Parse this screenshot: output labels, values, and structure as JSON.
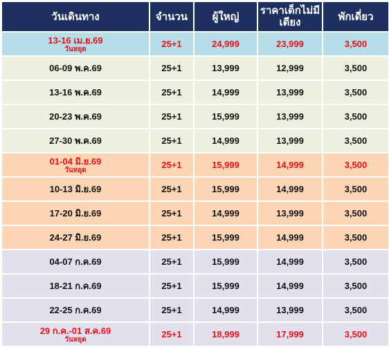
{
  "headers": [
    "วันเดินทาง",
    "จำนวน",
    "ผู้ใหญ่",
    "ราคาเด็กไม่มีเตียง",
    "พักเดี่ยว"
  ],
  "rows": [
    {
      "date": "13-16 เม.ย.69",
      "note": "วันหยุด",
      "pax": "25+1",
      "adult": "24,999",
      "child": "23,999",
      "single": "3,500",
      "group": "blue",
      "holiday": true
    },
    {
      "date": "06-09 พ.ค.69",
      "note": "",
      "pax": "25+1",
      "adult": "13,999",
      "child": "12,999",
      "single": "3,500",
      "group": "green",
      "holiday": false
    },
    {
      "date": "13-16 พ.ค.69",
      "note": "",
      "pax": "25+1",
      "adult": "14,999",
      "child": "13,999",
      "single": "3,500",
      "group": "green",
      "holiday": false
    },
    {
      "date": "20-23 พ.ค.69",
      "note": "",
      "pax": "25+1",
      "adult": "15,999",
      "child": "13,999",
      "single": "3,500",
      "group": "green",
      "holiday": false
    },
    {
      "date": "27-30 พ.ค.69",
      "note": "",
      "pax": "25+1",
      "adult": "14,999",
      "child": "13,999",
      "single": "3,500",
      "group": "green",
      "holiday": false
    },
    {
      "date": "01-04 มิ.ย.69",
      "note": "วันหยุด",
      "pax": "25+1",
      "adult": "15,999",
      "child": "14,999",
      "single": "3,500",
      "group": "orange",
      "holiday": true
    },
    {
      "date": "10-13 มิ.ย.69",
      "note": "",
      "pax": "25+1",
      "adult": "15,999",
      "child": "14,999",
      "single": "3,500",
      "group": "orange",
      "holiday": false
    },
    {
      "date": "17-20 มิ.ย.69",
      "note": "",
      "pax": "25+1",
      "adult": "14,999",
      "child": "13,999",
      "single": "3,500",
      "group": "orange",
      "holiday": false
    },
    {
      "date": "24-27 มิ.ย.69",
      "note": "",
      "pax": "25+1",
      "adult": "15,999",
      "child": "14,999",
      "single": "3,500",
      "group": "orange",
      "holiday": false
    },
    {
      "date": "04-07 ก.ค.69",
      "note": "",
      "pax": "25+1",
      "adult": "15,999",
      "child": "14,999",
      "single": "3,500",
      "group": "purple",
      "holiday": false
    },
    {
      "date": "18-21 ก.ค.69",
      "note": "",
      "pax": "25+1",
      "adult": "15,999",
      "child": "14,999",
      "single": "3,500",
      "group": "purple",
      "holiday": false
    },
    {
      "date": "22-25 ก.ค.69",
      "note": "",
      "pax": "25+1",
      "adult": "14,999",
      "child": "13,999",
      "single": "3,500",
      "group": "purple",
      "holiday": false
    },
    {
      "date": "29 ก.ค.-01 ส.ค.69",
      "note": "วันหยุด",
      "pax": "25+1",
      "adult": "18,999",
      "child": "17,999",
      "single": "3,500",
      "group": "purple",
      "holiday": true
    }
  ],
  "colors": {
    "header_bg": "#1c2f5e",
    "header_text": "#ffffff",
    "blue": "#b7dde8",
    "green": "#ebf1de",
    "orange": "#fcd5b4",
    "purple": "#e4dfec",
    "holiday_text": "#e8101a"
  }
}
